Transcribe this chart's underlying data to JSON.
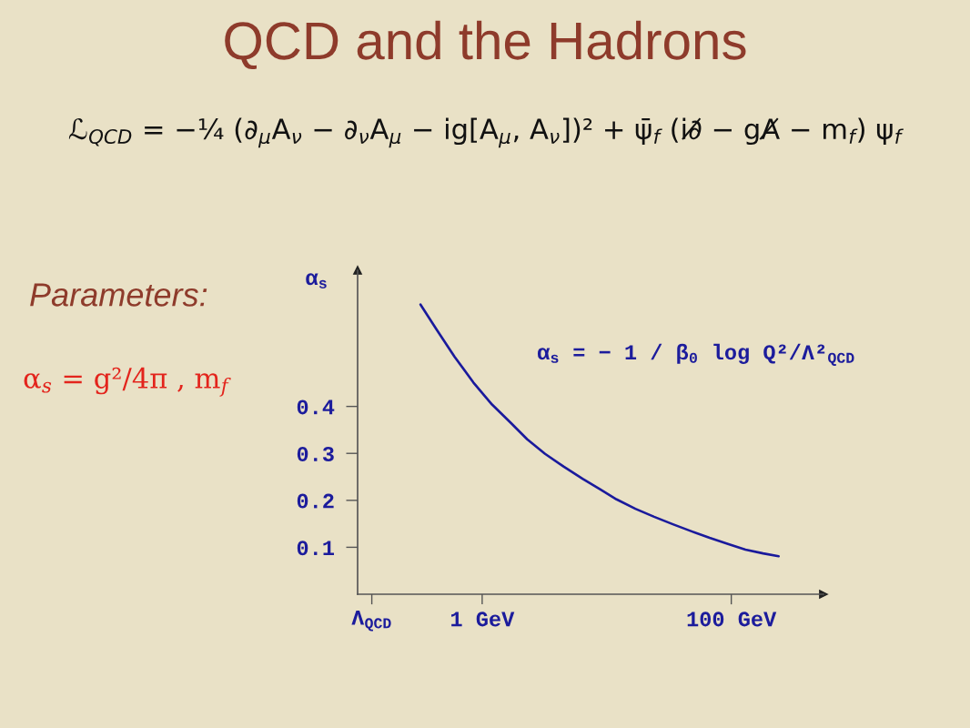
{
  "chart_data": {
    "type": "line",
    "title": "QCD and the Hadrons",
    "ylabel": "α$_{s}$",
    "annotations": [
      "ℒ$_{QCD}$ = −¼ (∂$_{μ}$A$_{ν}$ − ∂$_{ν}$A$_{μ}$ − ig[A$_{μ}$, A$_{ν}$])² + ψ̄$_{f}$ (i∂̸ − gA̸ − m$_{f}$) ψ$_{f}$",
      "Parameters:",
      "α$_{s}$ = g²/4π , m$_{f}$",
      "α$_{s}$ = − 1 / β$_{0}$ log Q²/Λ²$_{QCD}$"
    ],
    "log": "x",
    "xlim": [
      0.1,
      550
    ],
    "xticks": [
      {
        "value": 0.13,
        "label": "Λ$_{QCD}$"
      },
      {
        "value": 1,
        "label": "1 GeV"
      },
      {
        "value": 100,
        "label": "100 GeV"
      }
    ],
    "ylim": [
      0,
      0.69
    ],
    "yticks": [
      0.1,
      0.2,
      0.3,
      0.4
    ],
    "grid": false,
    "line_style": "solid",
    "series": [
      {
        "color": "#1a1a9c",
        "x": [
          0.32,
          0.43,
          0.6,
          0.85,
          1.2,
          1.7,
          2.3,
          3.2,
          4.5,
          6.4,
          8.9,
          12,
          17,
          24,
          34,
          48,
          67,
          94,
          130,
          180,
          240
        ],
        "values": [
          0.617,
          0.564,
          0.506,
          0.451,
          0.404,
          0.365,
          0.33,
          0.299,
          0.272,
          0.246,
          0.223,
          0.202,
          0.182,
          0.165,
          0.149,
          0.134,
          0.12,
          0.107,
          0.095,
          0.087,
          0.081
        ]
      }
    ]
  }
}
